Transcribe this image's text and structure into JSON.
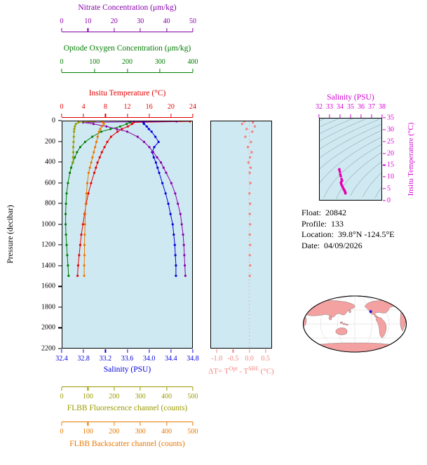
{
  "colors": {
    "panel_bg": "#cfe9f2",
    "map_land": "#f3a1a1",
    "map_marker": "#1515e0",
    "contour_gray": "#9aa6a8"
  },
  "axes": {
    "nitrate": {
      "title": "Nitrate Concentration (μm/kg)",
      "color": "#8800aa",
      "range": [
        0,
        50
      ],
      "ticks": [
        "0",
        "10",
        "20",
        "30",
        "40",
        "50"
      ]
    },
    "oxygen": {
      "title": "Optode Oxygen Concentration (μm/kg)",
      "color": "#007d00",
      "range": [
        0,
        400
      ],
      "ticks": [
        "0",
        "100",
        "200",
        "300",
        "400"
      ]
    },
    "temperature": {
      "title": "Insitu Temperature (°C)",
      "color": "#e60000",
      "range": [
        0,
        24
      ],
      "ticks": [
        "0",
        "4",
        "8",
        "12",
        "16",
        "20",
        "24"
      ]
    },
    "salinity": {
      "title": "Salinity (PSU)",
      "color": "#0000dd",
      "range": [
        32.4,
        34.8
      ],
      "ticks": [
        "32.4",
        "32.8",
        "33.2",
        "33.6",
        "34.0",
        "34.4",
        "34.8"
      ]
    },
    "pressure": {
      "title": "Pressure (decibar)",
      "color": "#000000",
      "range": [
        0,
        2200
      ],
      "ticks": [
        "0",
        "200",
        "400",
        "600",
        "800",
        "1000",
        "1200",
        "1400",
        "1600",
        "1800",
        "2000",
        "2200"
      ]
    },
    "fluorescence": {
      "title": "FLBB Fluorescence channel (counts)",
      "color": "#9a9a00",
      "range": [
        0,
        500
      ],
      "ticks": [
        "0",
        "100",
        "200",
        "300",
        "400",
        "500"
      ]
    },
    "backscatter": {
      "title": "FLBB Backscatter channel (counts)",
      "color": "#e87800",
      "range": [
        0,
        500
      ],
      "ticks": [
        "0",
        "100",
        "200",
        "300",
        "400",
        "500"
      ]
    },
    "delta_t": {
      "title": "ΔT= TOpt - TSBE (°C)",
      "title_parts": {
        "pre": "ΔT= T",
        "sup1": "Opt",
        "mid": " - T",
        "sup2": "SBE",
        "post": " (°C)"
      },
      "color": "#f4827e",
      "range": [
        -1.2,
        0.7
      ],
      "ticks": [
        "-1.0",
        "-0.5",
        "0.0",
        "0.5"
      ]
    },
    "ts_salinity": {
      "title": "Salinity (PSU)",
      "color": "#d400d4",
      "range": [
        32,
        38
      ],
      "ticks": [
        "32",
        "33",
        "34",
        "35",
        "36",
        "37",
        "38"
      ]
    },
    "ts_temperature": {
      "title": "Insitu Temperature (°C)",
      "color": "#d400d4",
      "range": [
        0,
        35
      ],
      "ticks": [
        "0",
        "5",
        "10",
        "15",
        "20",
        "25",
        "30",
        "35"
      ]
    }
  },
  "info": {
    "lines": [
      {
        "label": "Float:",
        "value": "20842"
      },
      {
        "label": "Profile:",
        "value": "133"
      },
      {
        "label": "Location:",
        "value": "39.8°N  -124.5°E"
      },
      {
        "label": "Date:",
        "value": "04/09/2026"
      }
    ]
  },
  "chart_data": [
    {
      "id": "profile-plot",
      "type": "line",
      "ylabel": "Pressure (decibar)",
      "ylim": [
        0,
        2200
      ],
      "xlabel_bottom": "Salinity (PSU)",
      "series": [
        {
          "name": "Insitu Temperature (°C)",
          "color": "#e60000",
          "xrange": [
            0,
            24
          ],
          "pressure": [
            0,
            10,
            25,
            50,
            75,
            100,
            150,
            200,
            250,
            300,
            350,
            400,
            450,
            500,
            600,
            700,
            800,
            900,
            1000,
            1100,
            1200,
            1300,
            1400,
            1500
          ],
          "values": [
            23.6,
            13.2,
            12.9,
            12.1,
            11.0,
            10.2,
            9.0,
            8.3,
            7.8,
            7.3,
            6.9,
            6.5,
            6.2,
            5.9,
            5.3,
            4.8,
            4.4,
            4.1,
            3.8,
            3.5,
            3.3,
            3.1,
            2.9,
            2.8
          ]
        },
        {
          "name": "Salinity (PSU)",
          "color": "#0000dd",
          "xrange": [
            32.4,
            34.8
          ],
          "pressure": [
            0,
            10,
            25,
            50,
            75,
            100,
            150,
            200,
            250,
            300,
            350,
            400,
            450,
            500,
            600,
            700,
            800,
            900,
            1000,
            1100,
            1200,
            1300,
            1400,
            1500
          ],
          "values": [
            33.92,
            33.9,
            33.91,
            33.96,
            34.0,
            34.05,
            34.12,
            34.18,
            34.1,
            34.06,
            34.09,
            34.13,
            34.16,
            34.19,
            34.25,
            34.31,
            34.36,
            34.4,
            34.44,
            34.46,
            34.48,
            34.49,
            34.5,
            34.5
          ]
        },
        {
          "name": "Optode Oxygen Concentration (μm/kg)",
          "color": "#007d00",
          "xrange": [
            0,
            400
          ],
          "pressure": [
            0,
            10,
            25,
            50,
            75,
            100,
            150,
            200,
            250,
            300,
            350,
            400,
            450,
            500,
            600,
            700,
            800,
            900,
            1000,
            1100,
            1200,
            1300,
            1400,
            1500
          ],
          "values": [
            205,
            210,
            198,
            178,
            148,
            120,
            92,
            70,
            55,
            45,
            38,
            32,
            27,
            23,
            17,
            13,
            11,
            10,
            10,
            11,
            13,
            15,
            17,
            19
          ]
        },
        {
          "name": "Nitrate Concentration (μm/kg)",
          "color": "#8800aa",
          "xrange": [
            0,
            50
          ],
          "pressure": [
            0,
            10,
            25,
            50,
            75,
            100,
            150,
            200,
            250,
            300,
            350,
            400,
            450,
            500,
            600,
            700,
            800,
            900,
            1000,
            1100,
            1200,
            1300,
            1400,
            1500
          ],
          "values": [
            44,
            8,
            12,
            17,
            21,
            25,
            29,
            31.5,
            33.5,
            35,
            36.5,
            38,
            39,
            40,
            42,
            43.5,
            44.5,
            45.5,
            46,
            46.5,
            46.8,
            47,
            47.2,
            47.4
          ]
        },
        {
          "name": "FLBB Fluorescence channel (counts)",
          "color": "#9a9a00",
          "xrange": [
            0,
            500
          ],
          "pressure": [
            0,
            10,
            25,
            50,
            75,
            100,
            150,
            200,
            250,
            300,
            350,
            400
          ],
          "values": [
            125,
            62,
            52,
            48,
            46,
            45,
            44,
            43,
            42,
            42,
            41,
            41
          ]
        },
        {
          "name": "FLBB Backscatter channel (counts)",
          "color": "#e87800",
          "xrange": [
            0,
            500
          ],
          "pressure": [
            0,
            10,
            25,
            50,
            75,
            100,
            150,
            200,
            250,
            300,
            350,
            400,
            450,
            500,
            600,
            700,
            800,
            900,
            1000,
            1100,
            1200,
            1300,
            1400,
            1500
          ],
          "values": [
            150,
            156,
            160,
            152,
            146,
            141,
            136,
            131,
            126,
            121,
            116,
            111,
            106,
            101,
            96,
            93,
            90,
            88,
            87,
            86,
            85,
            85,
            84,
            84
          ]
        }
      ]
    },
    {
      "id": "temperature-difference",
      "type": "scatter",
      "xlabel": "ΔT= TOpt - TSBE (°C)",
      "ylabel": "Pressure (decibar)",
      "xlim": [
        -1.2,
        0.7
      ],
      "ylim": [
        0,
        2200
      ],
      "color": "#f4827e",
      "pressure": [
        0,
        10,
        25,
        50,
        75,
        100,
        150,
        200,
        250,
        300,
        350,
        400,
        450,
        500,
        600,
        700,
        800,
        900,
        1000,
        1100,
        1200,
        1300,
        1400,
        1500
      ],
      "values": [
        -0.15,
        0.12,
        -0.22,
        0.18,
        -0.08,
        0.1,
        -0.12,
        0.06,
        -0.04,
        0.08,
        0.03,
        -0.02,
        0.05,
        0.02,
        0.04,
        0.01,
        0.03,
        0.02,
        0.03,
        0.02,
        0.03,
        0.02,
        0.03,
        0.02
      ]
    },
    {
      "id": "ts-diagram",
      "type": "scatter",
      "xlabel": "Salinity (PSU)",
      "ylabel": "Insitu Temperature (°C)",
      "xlim": [
        32,
        38
      ],
      "ylim": [
        0,
        35
      ],
      "color": "#e800b0",
      "note": "gray sigma-theta isopycnal contours in background",
      "salinity": [
        33.9,
        33.91,
        33.96,
        34.0,
        34.05,
        34.12,
        34.18,
        34.1,
        34.06,
        34.09,
        34.13,
        34.16,
        34.19,
        34.25,
        34.31,
        34.36,
        34.4,
        34.44,
        34.46,
        34.48,
        34.49,
        34.5,
        34.5
      ],
      "temperature": [
        13.2,
        12.9,
        12.1,
        11.0,
        10.2,
        9.0,
        8.3,
        7.8,
        7.3,
        6.9,
        6.5,
        6.2,
        5.9,
        5.3,
        4.8,
        4.4,
        4.1,
        3.8,
        3.5,
        3.3,
        3.1,
        2.9,
        2.8
      ]
    }
  ]
}
